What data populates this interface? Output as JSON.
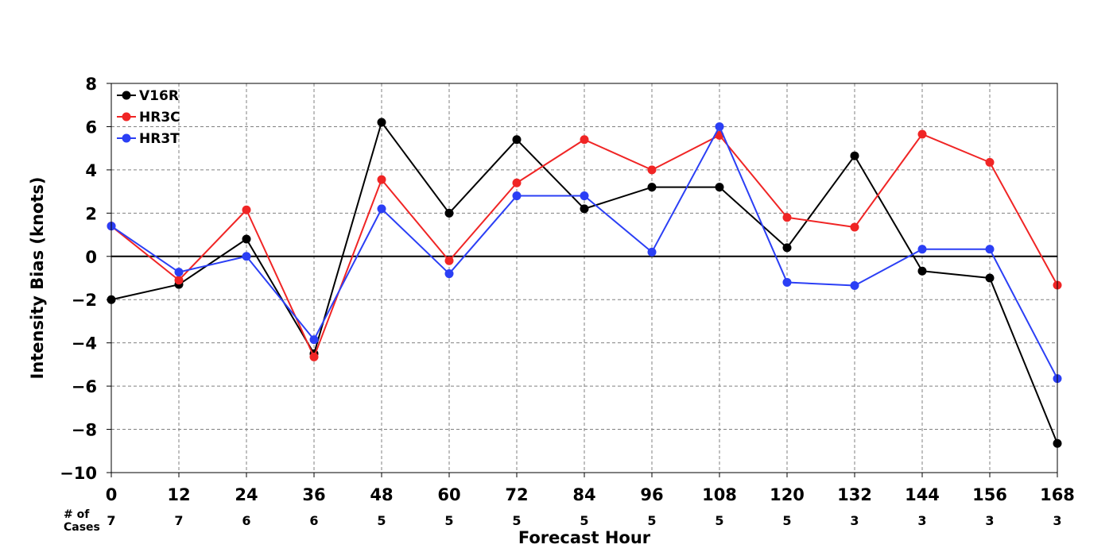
{
  "chart_data": {
    "type": "line",
    "xlabel": "Forecast Hour",
    "ylabel": "Intensity Bias (knots)",
    "x": [
      0,
      12,
      24,
      36,
      48,
      60,
      72,
      84,
      96,
      108,
      120,
      132,
      144,
      156,
      168
    ],
    "xlim": [
      0,
      168
    ],
    "ylim": [
      -10,
      8
    ],
    "yticks": [
      8,
      6,
      4,
      2,
      0,
      -2,
      -4,
      -6,
      -8,
      -10
    ],
    "ytick_labels": [
      "8",
      "6",
      "4",
      "2",
      "0",
      "−2",
      "−4",
      "−6",
      "−8",
      "−10"
    ],
    "xtick_labels": [
      "0",
      "12",
      "24",
      "36",
      "48",
      "60",
      "72",
      "84",
      "96",
      "108",
      "120",
      "132",
      "144",
      "156",
      "168"
    ],
    "grid": true,
    "zero_line": true,
    "legend_position": "top-left",
    "cases_label": [
      "# of",
      "Cases"
    ],
    "cases": [
      "7",
      "7",
      "6",
      "6",
      "5",
      "5",
      "5",
      "5",
      "5",
      "5",
      "5",
      "3",
      "3",
      "3",
      "3"
    ],
    "series": [
      {
        "name": "V16R",
        "color": "#000000",
        "values": [
          -2.0,
          -1.3,
          0.8,
          -4.5,
          6.2,
          2.0,
          5.4,
          2.2,
          3.2,
          3.2,
          0.4,
          4.65,
          -0.68,
          -1.0,
          -8.65
        ]
      },
      {
        "name": "HR3C",
        "color": "#f02525",
        "values": [
          1.4,
          -1.1,
          2.15,
          -4.65,
          3.55,
          -0.2,
          3.4,
          5.4,
          4.0,
          5.6,
          1.8,
          1.35,
          5.65,
          4.35,
          -1.33
        ]
      },
      {
        "name": "HR3T",
        "color": "#2b3ff5",
        "values": [
          1.4,
          -0.73,
          0.0,
          -3.85,
          2.2,
          -0.8,
          2.8,
          2.8,
          0.2,
          6.0,
          -1.2,
          -1.35,
          0.33,
          0.33,
          -5.65
        ]
      }
    ]
  }
}
